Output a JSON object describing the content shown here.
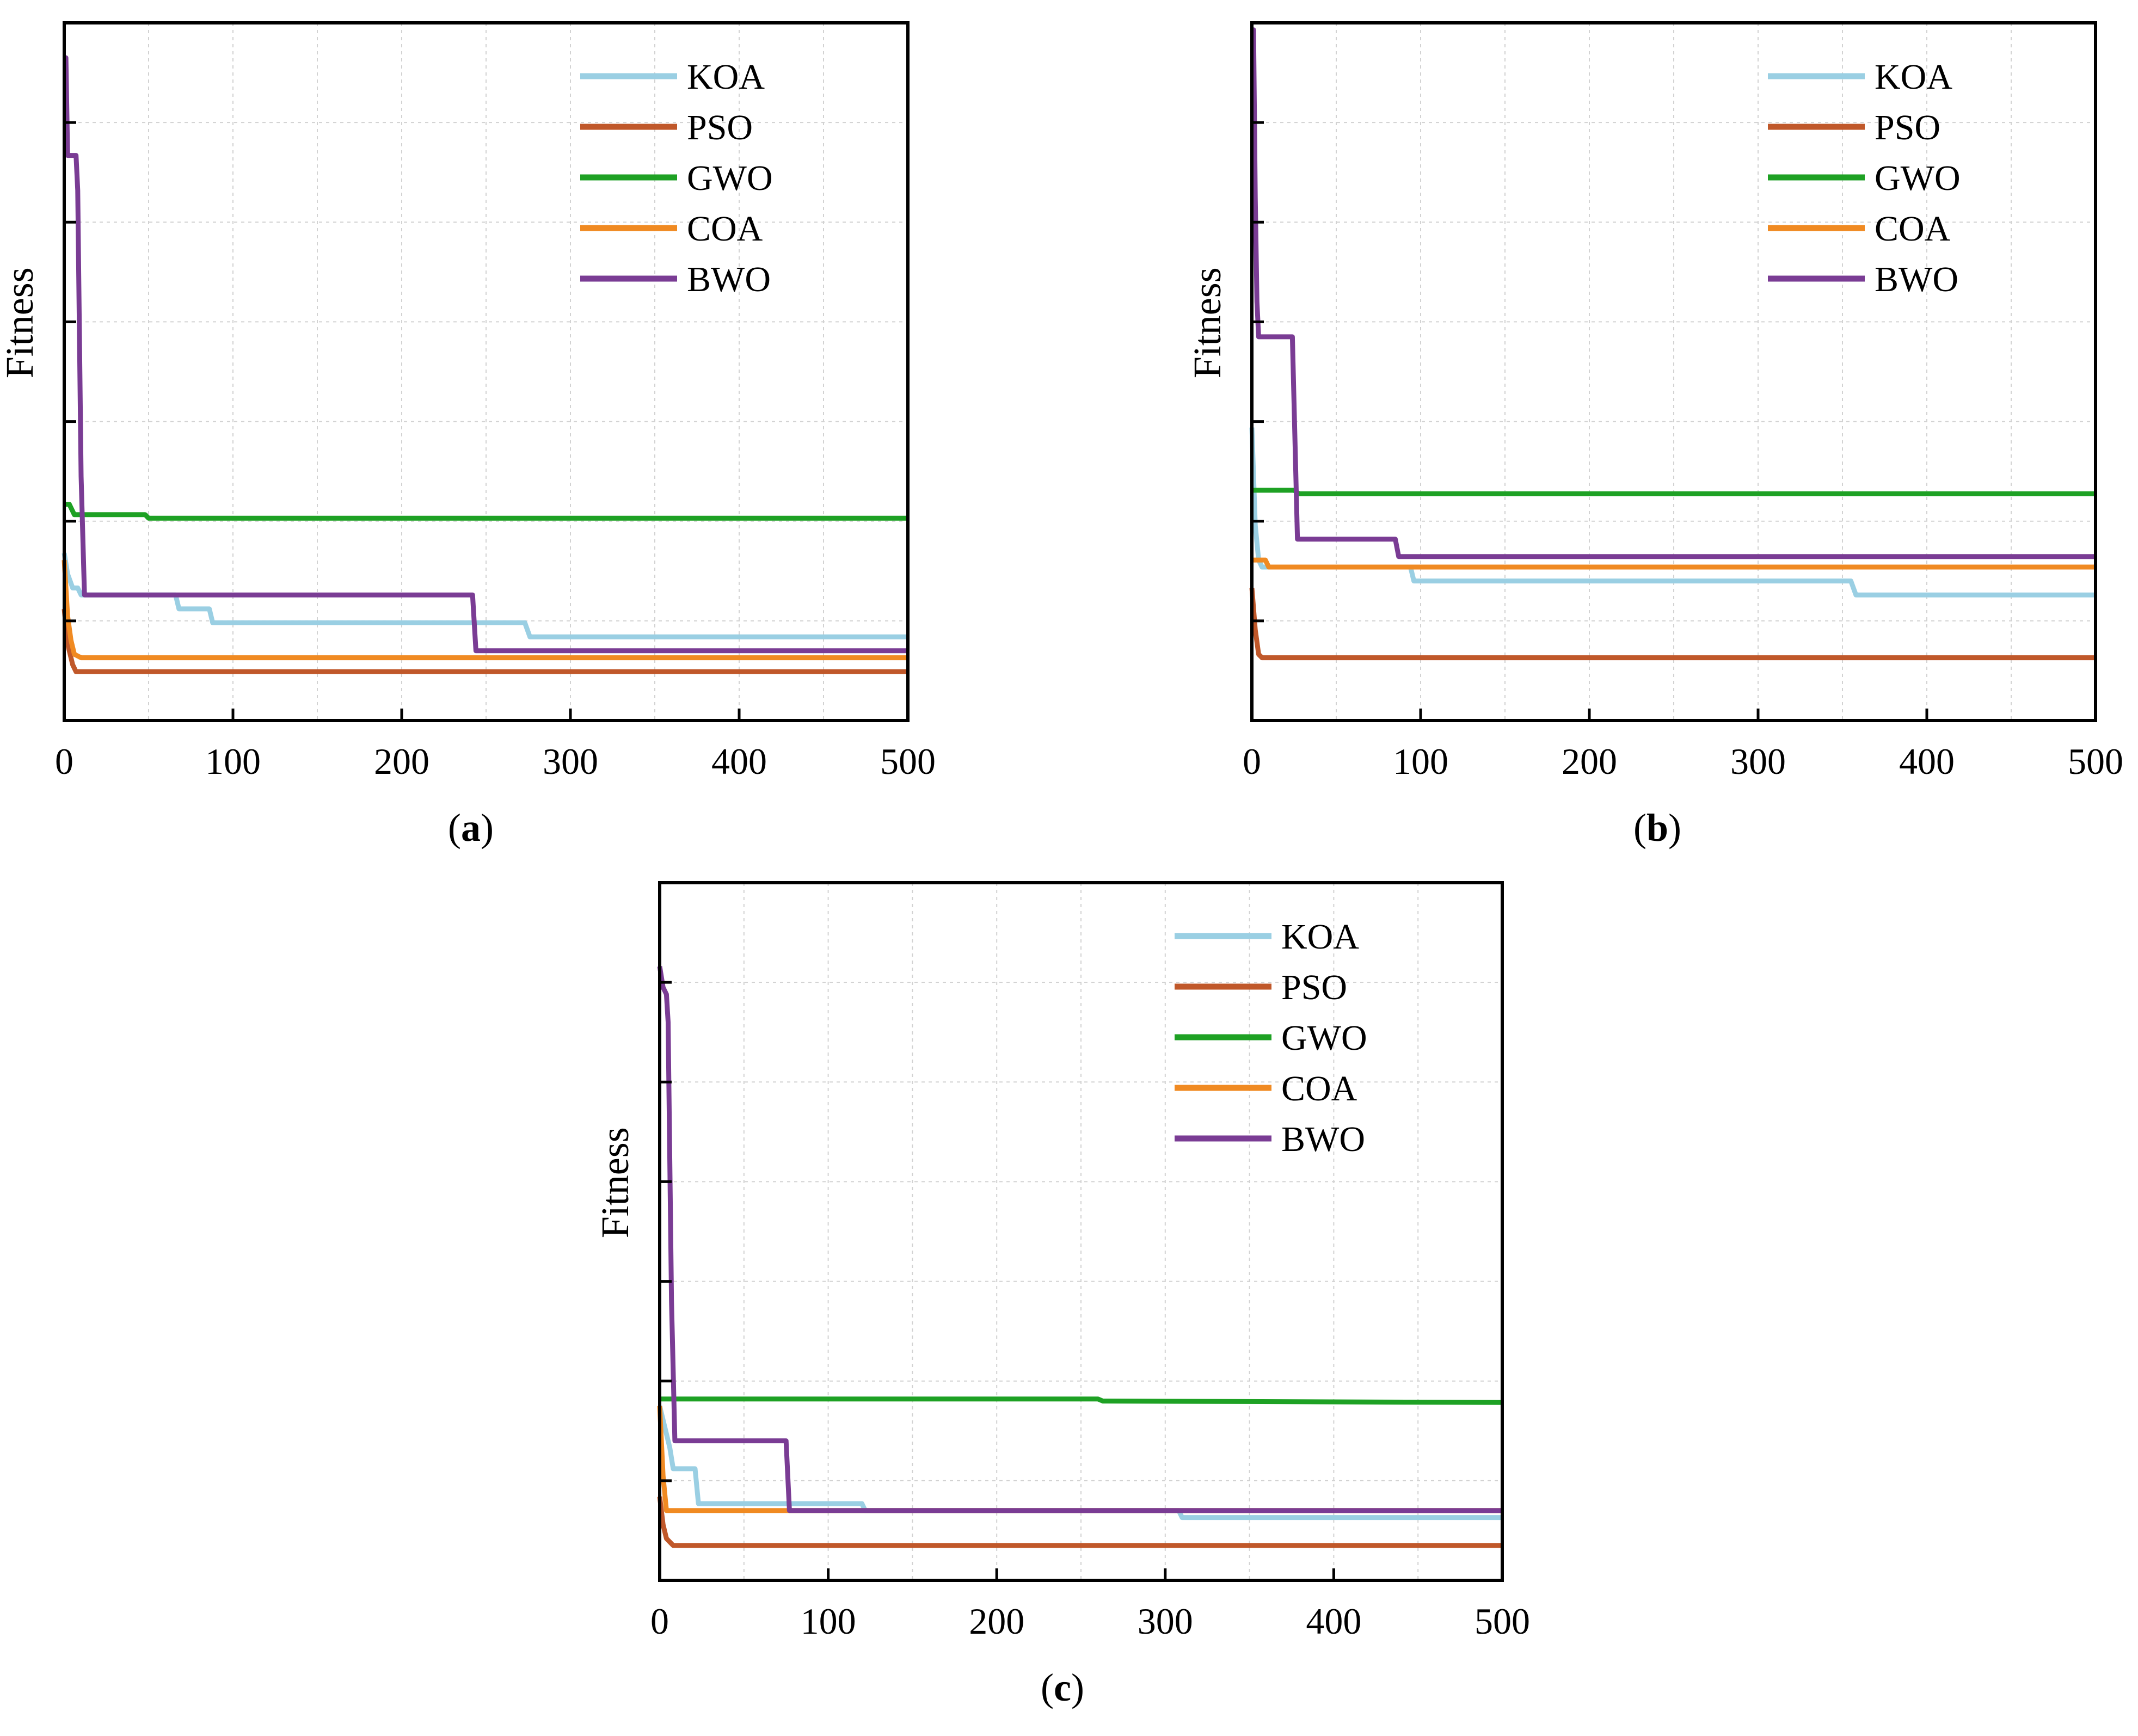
{
  "figure": {
    "captions": [
      "a",
      "b",
      "c"
    ]
  },
  "chart_data": [
    {
      "id": "a",
      "type": "line",
      "title": "",
      "xlabel": "",
      "ylabel": "Fitness",
      "xlim": [
        0,
        500
      ],
      "ylim": [
        0,
        100
      ],
      "xticks": [
        0,
        100,
        200,
        300,
        400,
        500
      ],
      "legend_position": "top-right",
      "series": [
        {
          "name": "KOA",
          "color": "#9acfe3",
          "x": [
            0,
            2,
            5,
            8,
            10,
            66,
            68,
            86,
            88,
            273,
            276,
            500
          ],
          "y": [
            24,
            21,
            19,
            19,
            18,
            18,
            16,
            16,
            14,
            14,
            12,
            12
          ]
        },
        {
          "name": "PSO",
          "color": "#c0582a",
          "x": [
            0,
            2,
            5,
            7,
            500
          ],
          "y": [
            16,
            11,
            8,
            7,
            7
          ]
        },
        {
          "name": "GWO",
          "color": "#1ea124",
          "x": [
            0,
            3,
            6,
            48,
            50,
            500
          ],
          "y": [
            31,
            31,
            29.5,
            29.5,
            29,
            29
          ]
        },
        {
          "name": "COA",
          "color": "#f08a22",
          "x": [
            0,
            2,
            4,
            6,
            10,
            500
          ],
          "y": [
            23,
            15,
            11.5,
            9.5,
            9,
            9
          ]
        },
        {
          "name": "BWO",
          "color": "#7a3c94",
          "x": [
            0,
            1,
            2,
            7,
            8,
            10,
            12,
            242,
            244,
            500
          ],
          "y": [
            95,
            95,
            81,
            81,
            76,
            35,
            18,
            18,
            10,
            10
          ]
        }
      ]
    },
    {
      "id": "b",
      "type": "line",
      "title": "",
      "xlabel": "",
      "ylabel": "Fitness",
      "xlim": [
        0,
        500
      ],
      "ylim": [
        0,
        100
      ],
      "xticks": [
        0,
        100,
        200,
        300,
        400,
        500
      ],
      "legend_position": "top-right",
      "series": [
        {
          "name": "KOA",
          "color": "#9acfe3",
          "x": [
            0,
            2,
            4,
            6,
            94,
            96,
            355,
            358,
            500
          ],
          "y": [
            42,
            28,
            23,
            22,
            22,
            20,
            20,
            18,
            18
          ]
        },
        {
          "name": "PSO",
          "color": "#c0582a",
          "x": [
            0,
            2,
            4,
            6,
            500
          ],
          "y": [
            19,
            13,
            9.5,
            9,
            9
          ]
        },
        {
          "name": "GWO",
          "color": "#1ea124",
          "x": [
            0,
            25,
            28,
            500
          ],
          "y": [
            33,
            33,
            32.5,
            32.5
          ]
        },
        {
          "name": "COA",
          "color": "#f08a22",
          "x": [
            0,
            8,
            10,
            500
          ],
          "y": [
            23,
            23,
            22,
            22
          ]
        },
        {
          "name": "BWO",
          "color": "#7a3c94",
          "x": [
            0,
            1,
            2,
            3,
            4,
            24,
            27,
            85,
            87,
            500
          ],
          "y": [
            99,
            99,
            75,
            60,
            55,
            55,
            26,
            26,
            23.5,
            23.5
          ]
        }
      ]
    },
    {
      "id": "c",
      "type": "line",
      "title": "",
      "xlabel": "",
      "ylabel": "Fitness",
      "xlim": [
        0,
        500
      ],
      "ylim": [
        0,
        100
      ],
      "xticks": [
        0,
        100,
        200,
        300,
        400,
        500
      ],
      "legend_position": "top-right",
      "series": [
        {
          "name": "KOA",
          "color": "#9acfe3",
          "x": [
            0,
            6,
            8,
            21,
            23,
            120,
            122,
            308,
            310,
            500
          ],
          "y": [
            25,
            19,
            16,
            16,
            11,
            11,
            10,
            10,
            9,
            9
          ]
        },
        {
          "name": "PSO",
          "color": "#c0582a",
          "x": [
            0,
            2,
            4,
            8,
            500
          ],
          "y": [
            12,
            8,
            6,
            5,
            5
          ]
        },
        {
          "name": "GWO",
          "color": "#1ea124",
          "x": [
            0,
            260,
            263,
            500
          ],
          "y": [
            26,
            26,
            25.7,
            25.5
          ]
        },
        {
          "name": "COA",
          "color": "#f08a22",
          "x": [
            0,
            2,
            4,
            500
          ],
          "y": [
            25,
            15,
            10,
            10
          ]
        },
        {
          "name": "BWO",
          "color": "#7a3c94",
          "x": [
            0,
            2,
            4,
            5,
            6,
            7,
            9,
            75,
            77,
            500
          ],
          "y": [
            88,
            85,
            84,
            80,
            60,
            40,
            20,
            20,
            10,
            10
          ]
        }
      ]
    }
  ]
}
